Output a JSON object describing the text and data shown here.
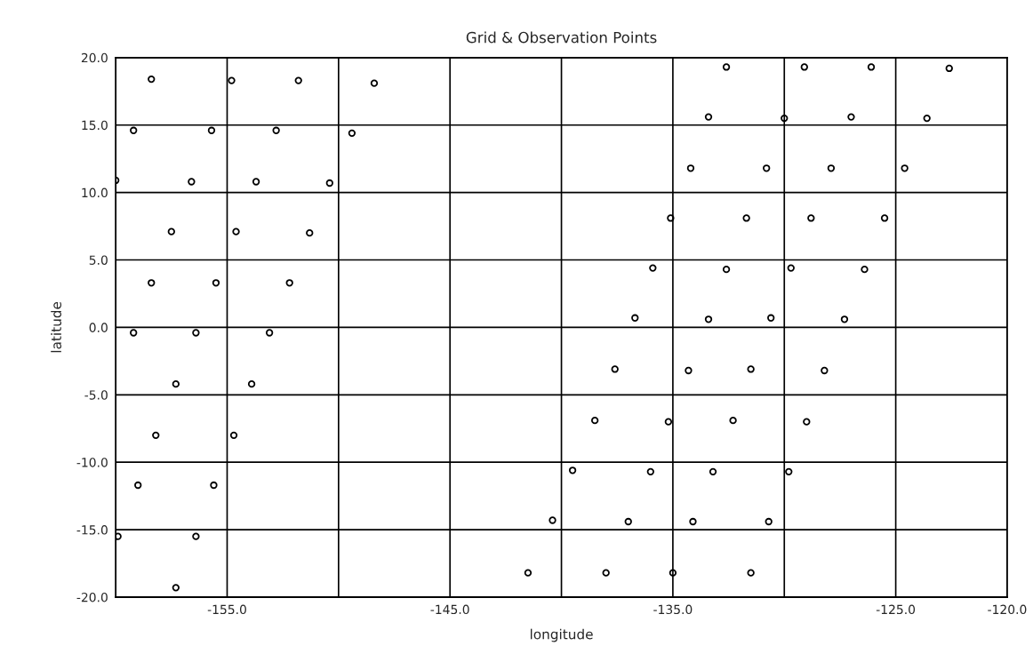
{
  "chart_data": {
    "type": "scatter",
    "title": "Grid & Observation Points",
    "xlabel": "longitude",
    "ylabel": "latitude",
    "xlim": [
      -160,
      -120
    ],
    "ylim": [
      -20,
      20
    ],
    "xticks": [
      {
        "value": -160,
        "label": null
      },
      {
        "value": -155,
        "label": "-155.0"
      },
      {
        "value": -150,
        "label": null
      },
      {
        "value": -145,
        "label": "-145.0"
      },
      {
        "value": -140,
        "label": null
      },
      {
        "value": -135,
        "label": "-135.0"
      },
      {
        "value": -130,
        "label": null
      },
      {
        "value": -125,
        "label": "-125.0"
      },
      {
        "value": -120,
        "label": "-120.0"
      }
    ],
    "yticks": [
      {
        "value": -20,
        "label": "-20.0"
      },
      {
        "value": -15,
        "label": "-15.0"
      },
      {
        "value": -10,
        "label": "-10.0"
      },
      {
        "value": -5,
        "label": "-5.0"
      },
      {
        "value": 0,
        "label": "0.0"
      },
      {
        "value": 5,
        "label": "5.0"
      },
      {
        "value": 10,
        "label": "10.0"
      },
      {
        "value": 15,
        "label": "15.0"
      },
      {
        "value": 20,
        "label": "20.0"
      }
    ],
    "grid": true,
    "marker": "circle",
    "series": [
      {
        "color": "#000000",
        "x": [
          -158.4,
          -154.8,
          -151.8,
          -148.4,
          -159.2,
          -155.7,
          -152.8,
          -149.4,
          -160.0,
          -156.6,
          -153.7,
          -150.4,
          -157.5,
          -154.6,
          -151.3,
          -158.4,
          -155.5,
          -152.2,
          -159.2,
          -156.4,
          -153.1,
          -157.3,
          -153.9,
          -158.2,
          -154.7,
          -159.0,
          -155.6,
          -159.9,
          -156.4,
          -157.3,
          -132.6,
          -129.1,
          -126.1,
          -122.6,
          -133.4,
          -130.0,
          -127.0,
          -123.6,
          -134.2,
          -130.8,
          -127.9,
          -124.6,
          -135.1,
          -131.7,
          -128.8,
          -125.5,
          -135.9,
          -132.6,
          -129.7,
          -126.4,
          -136.7,
          -133.4,
          -130.6,
          -127.3,
          -137.6,
          -134.3,
          -131.5,
          -128.2,
          -138.5,
          -135.2,
          -132.3,
          -129.0,
          -139.5,
          -136.0,
          -133.2,
          -129.8,
          -140.4,
          -137.0,
          -134.1,
          -130.7,
          -141.5,
          -138.0,
          -135.0,
          -131.5
        ],
        "values": [
          18.4,
          18.3,
          18.3,
          18.1,
          14.6,
          14.6,
          14.6,
          14.4,
          10.9,
          10.8,
          10.8,
          10.7,
          7.1,
          7.1,
          7.0,
          3.3,
          3.3,
          3.3,
          -0.4,
          -0.4,
          -0.4,
          -4.2,
          -4.2,
          -8.0,
          -8.0,
          -11.7,
          -11.7,
          -15.5,
          -15.5,
          -19.3,
          19.3,
          19.3,
          19.3,
          19.2,
          15.6,
          15.5,
          15.6,
          15.5,
          11.8,
          11.8,
          11.8,
          11.8,
          8.1,
          8.1,
          8.1,
          8.1,
          4.4,
          4.3,
          4.4,
          4.3,
          0.7,
          0.6,
          0.7,
          0.6,
          -3.1,
          -3.2,
          -3.1,
          -3.2,
          -6.9,
          -7.0,
          -6.9,
          -7.0,
          -10.6,
          -10.7,
          -10.7,
          -10.7,
          -14.3,
          -14.4,
          -14.4,
          -14.4,
          -18.2,
          -18.2,
          -18.2,
          -18.2
        ]
      }
    ]
  }
}
